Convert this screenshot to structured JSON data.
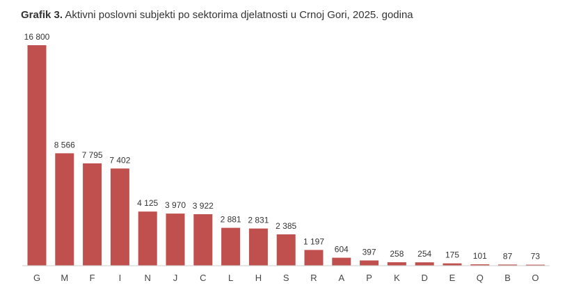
{
  "title": {
    "prefix": "Grafik 3.",
    "text": "Aktivni poslovni subjekti po sektorima djelatnosti u Crnoj Gori, 2025. godina"
  },
  "colors": {
    "bar": "#c0504d",
    "axis": "#cccccc"
  },
  "chart_data": {
    "type": "bar",
    "title": "Grafik 3. Aktivni poslovni subjekti po sektorima djelatnosti u Crnoj Gori, 2025. godina",
    "categories": [
      "G",
      "M",
      "F",
      "I",
      "N",
      "J",
      "C",
      "L",
      "H",
      "S",
      "R",
      "A",
      "P",
      "K",
      "D",
      "E",
      "Q",
      "B",
      "O"
    ],
    "values": [
      16800,
      8566,
      7795,
      7402,
      4125,
      3970,
      3922,
      2881,
      2831,
      2385,
      1197,
      604,
      397,
      258,
      254,
      175,
      101,
      87,
      73
    ],
    "value_labels": [
      "16 800",
      "8 566",
      "7 795",
      "7 402",
      "4 125",
      "3 970",
      "3 922",
      "2 881",
      "2 831",
      "2 385",
      "1 197",
      "604",
      "397",
      "258",
      "254",
      "175",
      "101",
      "87",
      "73"
    ],
    "xlabel": "",
    "ylabel": "",
    "ylim": [
      0,
      16800
    ],
    "grid": false,
    "legend": "none"
  }
}
